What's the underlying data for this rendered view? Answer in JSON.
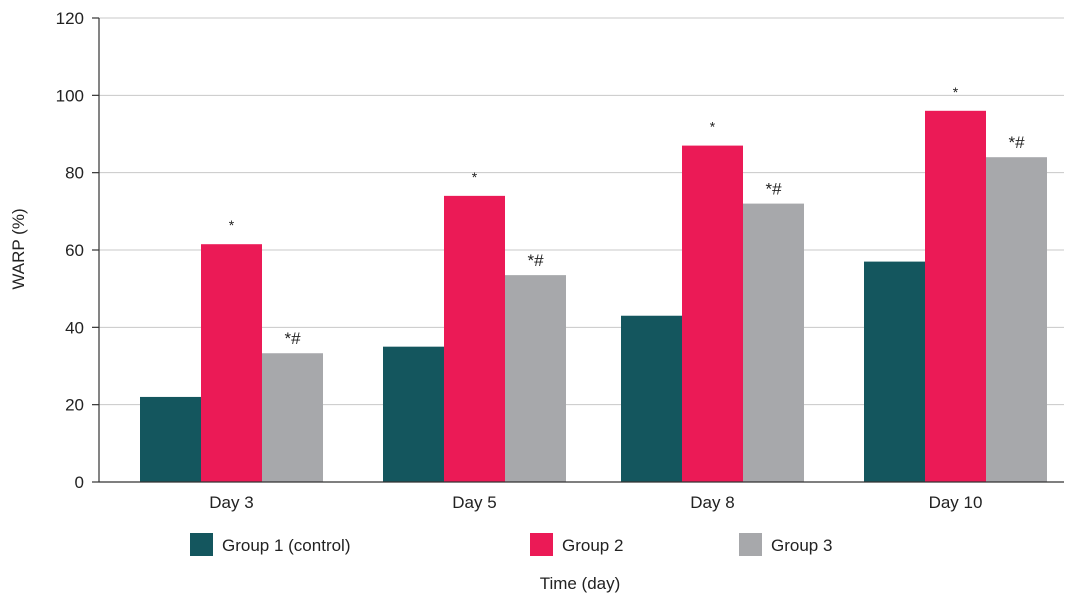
{
  "chart_data": {
    "type": "bar",
    "categories": [
      "Day 3",
      "Day 5",
      "Day 8",
      "Day 10"
    ],
    "series": [
      {
        "name": "Group 1 (control)",
        "color": "#14565e",
        "values": [
          22,
          35,
          43,
          57
        ],
        "annotations": [
          "",
          "",
          "",
          ""
        ]
      },
      {
        "name": "Group 2",
        "color": "#eb1a56",
        "values": [
          61.5,
          74,
          87,
          96
        ],
        "annotations": [
          "*",
          "*",
          "*",
          "*"
        ]
      },
      {
        "name": "Group 3",
        "color": "#a7a8ab",
        "values": [
          33.3,
          53.5,
          72,
          84
        ],
        "annotations": [
          "*#",
          "*#",
          "*#",
          "*#"
        ]
      }
    ],
    "xlabel": "Time (day)",
    "ylabel": "WARP (%)",
    "ylim": [
      0,
      120
    ],
    "yticks": [
      "0",
      "20",
      "40",
      "60",
      "80",
      "100",
      "120"
    ],
    "grid": true,
    "legend_position": "bottom"
  }
}
